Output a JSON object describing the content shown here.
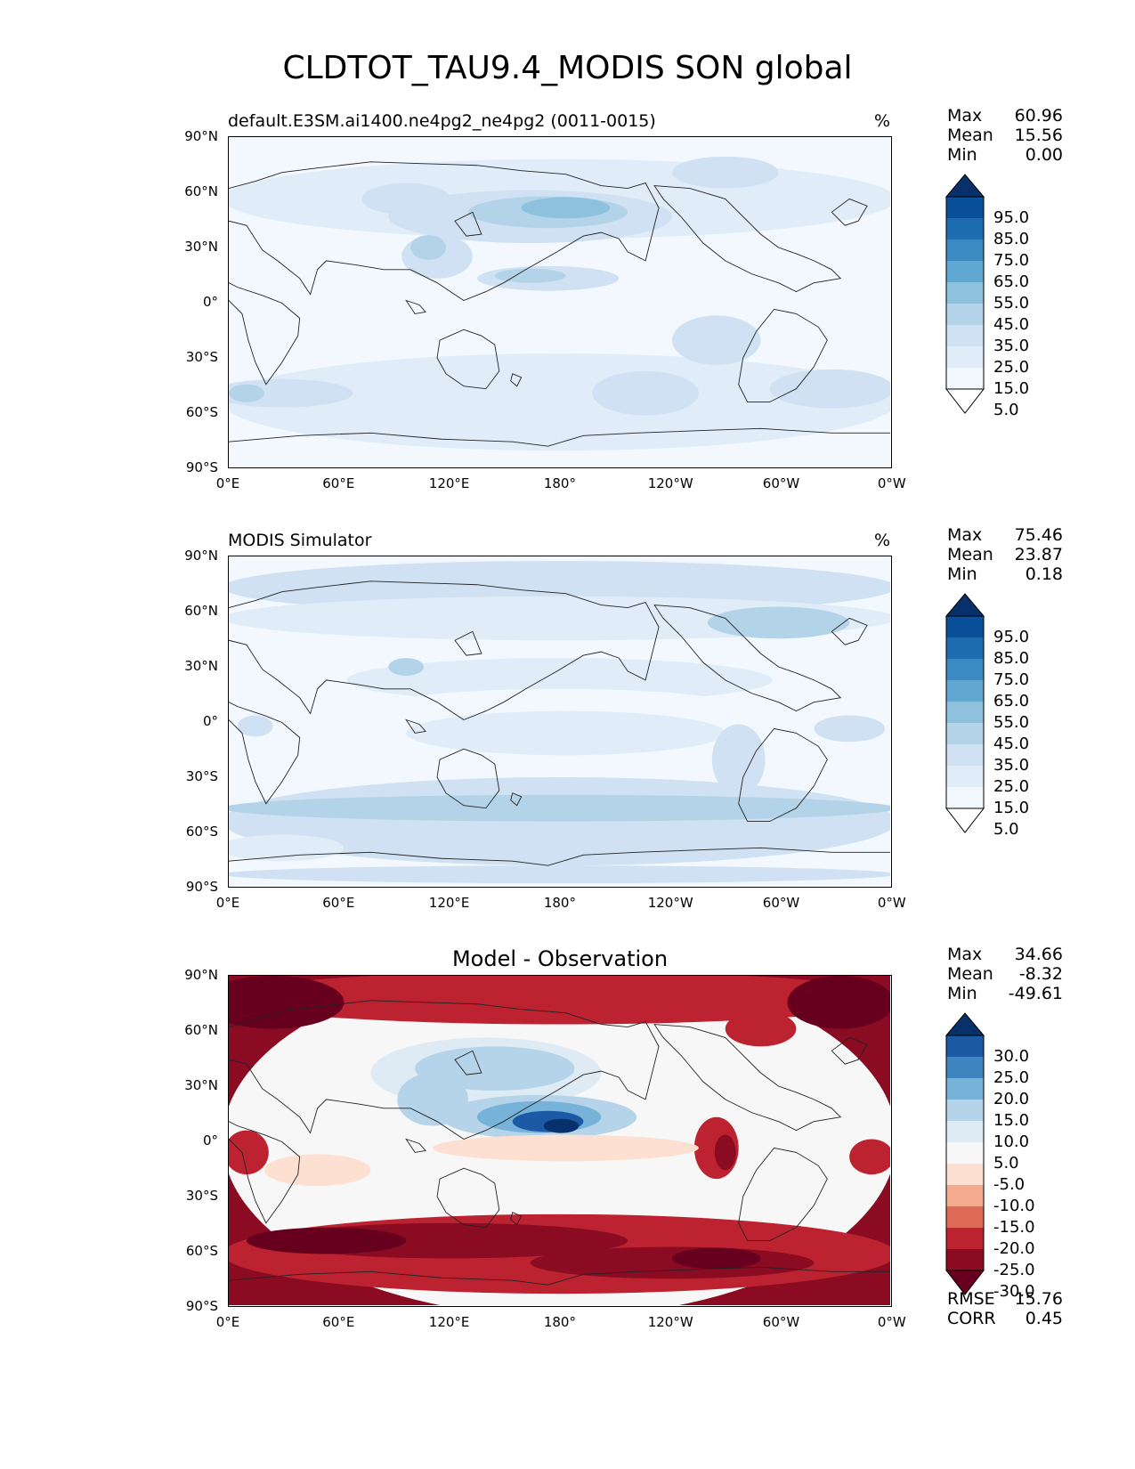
{
  "figure_title": "CLDTOT_TAU9.4_MODIS SON global",
  "axes": {
    "lat_labels": [
      "90°N",
      "60°N",
      "30°N",
      "0°",
      "30°S",
      "60°S",
      "90°S"
    ],
    "lon_labels": [
      "0°E",
      "60°E",
      "120°E",
      "180°",
      "120°W",
      "60°W",
      "0°W"
    ]
  },
  "panels": [
    {
      "id": "model",
      "title": "default.E3SM.ai1400.ne4pg2_ne4pg2 (0011-0015)",
      "units": "%",
      "stats": {
        "max_label": "Max",
        "max": "60.96",
        "mean_label": "Mean",
        "mean": "15.56",
        "min_label": "Min",
        "min": "0.00"
      },
      "colorbar": {
        "ticks": [
          "95.0",
          "85.0",
          "75.0",
          "65.0",
          "55.0",
          "45.0",
          "35.0",
          "25.0",
          "15.0",
          "5.0"
        ],
        "colors": [
          "#08306b",
          "#0a4f9a",
          "#1f6db1",
          "#3b8bc2",
          "#60a7d2",
          "#8dc1dd",
          "#b3d3e8",
          "#cfe1f2",
          "#e0ecf8",
          "#f2f8fd",
          "#ffffff"
        ]
      }
    },
    {
      "id": "obs",
      "title": "MODIS Simulator",
      "units": "%",
      "stats": {
        "max_label": "Max",
        "max": "75.46",
        "mean_label": "Mean",
        "mean": "23.87",
        "min_label": "Min",
        "min": "0.18"
      },
      "colorbar": {
        "ticks": [
          "95.0",
          "85.0",
          "75.0",
          "65.0",
          "55.0",
          "45.0",
          "35.0",
          "25.0",
          "15.0",
          "5.0"
        ],
        "colors": [
          "#08306b",
          "#0a4f9a",
          "#1f6db1",
          "#3b8bc2",
          "#60a7d2",
          "#8dc1dd",
          "#b3d3e8",
          "#cfe1f2",
          "#e0ecf8",
          "#f2f8fd",
          "#ffffff"
        ]
      }
    },
    {
      "id": "diff",
      "title": "Model - Observation",
      "units": "",
      "stats": {
        "max_label": "Max",
        "max": "34.66",
        "mean_label": "Mean",
        "mean": "-8.32",
        "min_label": "Min",
        "min": "-49.61"
      },
      "metrics": {
        "rmse_label": "RMSE",
        "rmse": "15.76",
        "corr_label": "CORR",
        "corr": "0.45"
      },
      "colorbar": {
        "ticks": [
          "30.0",
          "25.0",
          "20.0",
          "15.0",
          "10.0",
          "5.0",
          "-5.0",
          "-10.0",
          "-15.0",
          "-20.0",
          "-25.0",
          "-30.0"
        ],
        "colors": [
          "#08306b",
          "#1c5aa6",
          "#3f86c0",
          "#77b2d8",
          "#b5d4e9",
          "#deebf5",
          "#f7f7f7",
          "#fde0d2",
          "#f4aa8c",
          "#de6b57",
          "#bd2230",
          "#8a0b22",
          "#67001f"
        ]
      }
    }
  ]
}
